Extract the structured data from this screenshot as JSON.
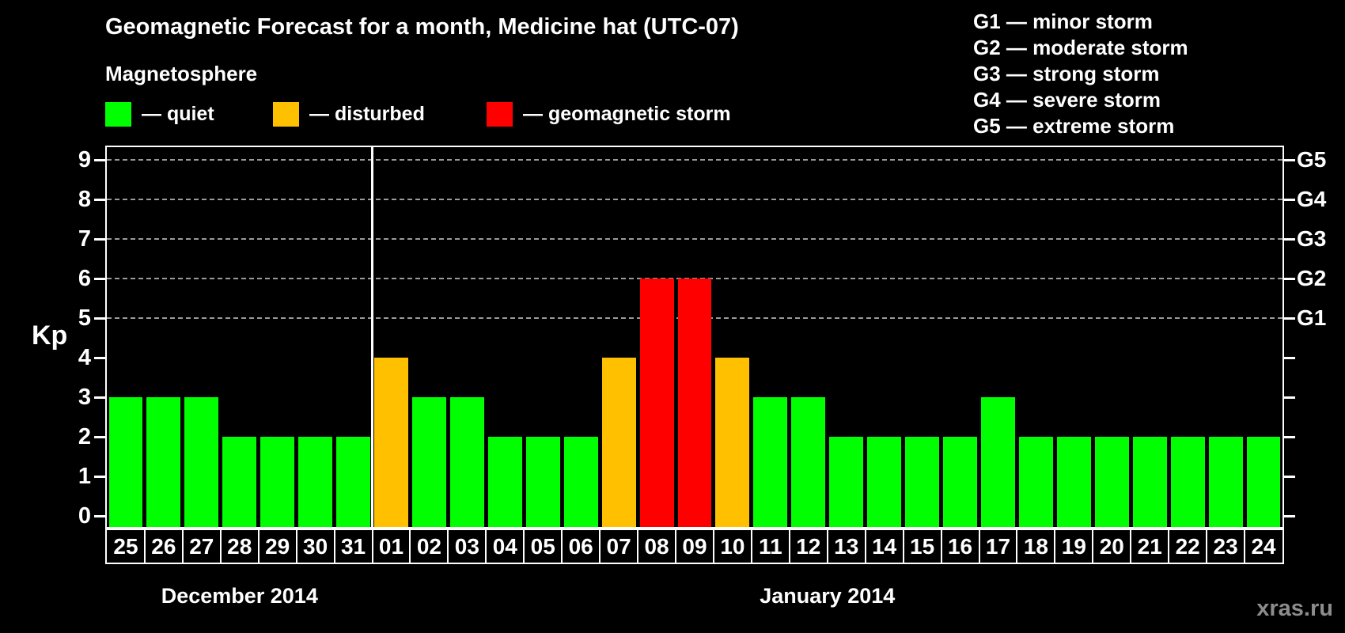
{
  "header": {
    "title": "Geomagnetic Forecast for a month, Medicine hat (UTC-07)",
    "subtitle": "Magnetosphere"
  },
  "legend": {
    "items": [
      {
        "key": "quiet",
        "label": "— quiet",
        "color": "#00FF00"
      },
      {
        "key": "disturbed",
        "label": "— disturbed",
        "color": "#FFC000"
      },
      {
        "key": "storm",
        "label": "— geomagnetic storm",
        "color": "#FF0000"
      }
    ]
  },
  "g_scale_legend": {
    "items": [
      "G1 — minor storm",
      "G2 — moderate storm",
      "G3 — strong storm",
      "G4 — severe storm",
      "G5 — extreme storm"
    ]
  },
  "watermark": "xras.ru",
  "chart_data": {
    "type": "bar",
    "title": "Geomagnetic Forecast for a month, Medicine hat (UTC-07)",
    "ylabel": "Kp",
    "ylim": [
      0,
      9
    ],
    "yticks": [
      0,
      1,
      2,
      3,
      4,
      5,
      6,
      7,
      8,
      9
    ],
    "gridlines_at": [
      5,
      6,
      7,
      8,
      9
    ],
    "grid": "dashed-horizontal",
    "right_axis_labels": [
      {
        "value": 5,
        "label": "G1"
      },
      {
        "value": 6,
        "label": "G2"
      },
      {
        "value": 7,
        "label": "G3"
      },
      {
        "value": 8,
        "label": "G4"
      },
      {
        "value": 9,
        "label": "G5"
      }
    ],
    "status_colors": {
      "quiet": "#00FF00",
      "disturbed": "#FFC000",
      "storm": "#FF0000"
    },
    "groups": [
      {
        "label": "December 2014",
        "days": [
          "25",
          "26",
          "27",
          "28",
          "29",
          "30",
          "31"
        ],
        "values": [
          3,
          3,
          3,
          2,
          2,
          2,
          2
        ],
        "statuses": [
          "quiet",
          "quiet",
          "quiet",
          "quiet",
          "quiet",
          "quiet",
          "quiet"
        ]
      },
      {
        "label": "January 2014",
        "days": [
          "01",
          "02",
          "03",
          "04",
          "05",
          "06",
          "07",
          "08",
          "09",
          "10",
          "11",
          "12",
          "13",
          "14",
          "15",
          "16",
          "17",
          "18",
          "19",
          "20",
          "21",
          "22",
          "23",
          "24"
        ],
        "values": [
          4,
          3,
          3,
          2,
          2,
          2,
          4,
          6,
          6,
          4,
          3,
          3,
          2,
          2,
          2,
          2,
          3,
          2,
          2,
          2,
          2,
          2,
          2,
          2
        ],
        "statuses": [
          "disturbed",
          "quiet",
          "quiet",
          "quiet",
          "quiet",
          "quiet",
          "disturbed",
          "storm",
          "storm",
          "disturbed",
          "quiet",
          "quiet",
          "quiet",
          "quiet",
          "quiet",
          "quiet",
          "quiet",
          "quiet",
          "quiet",
          "quiet",
          "quiet",
          "quiet",
          "quiet",
          "quiet"
        ]
      }
    ]
  }
}
